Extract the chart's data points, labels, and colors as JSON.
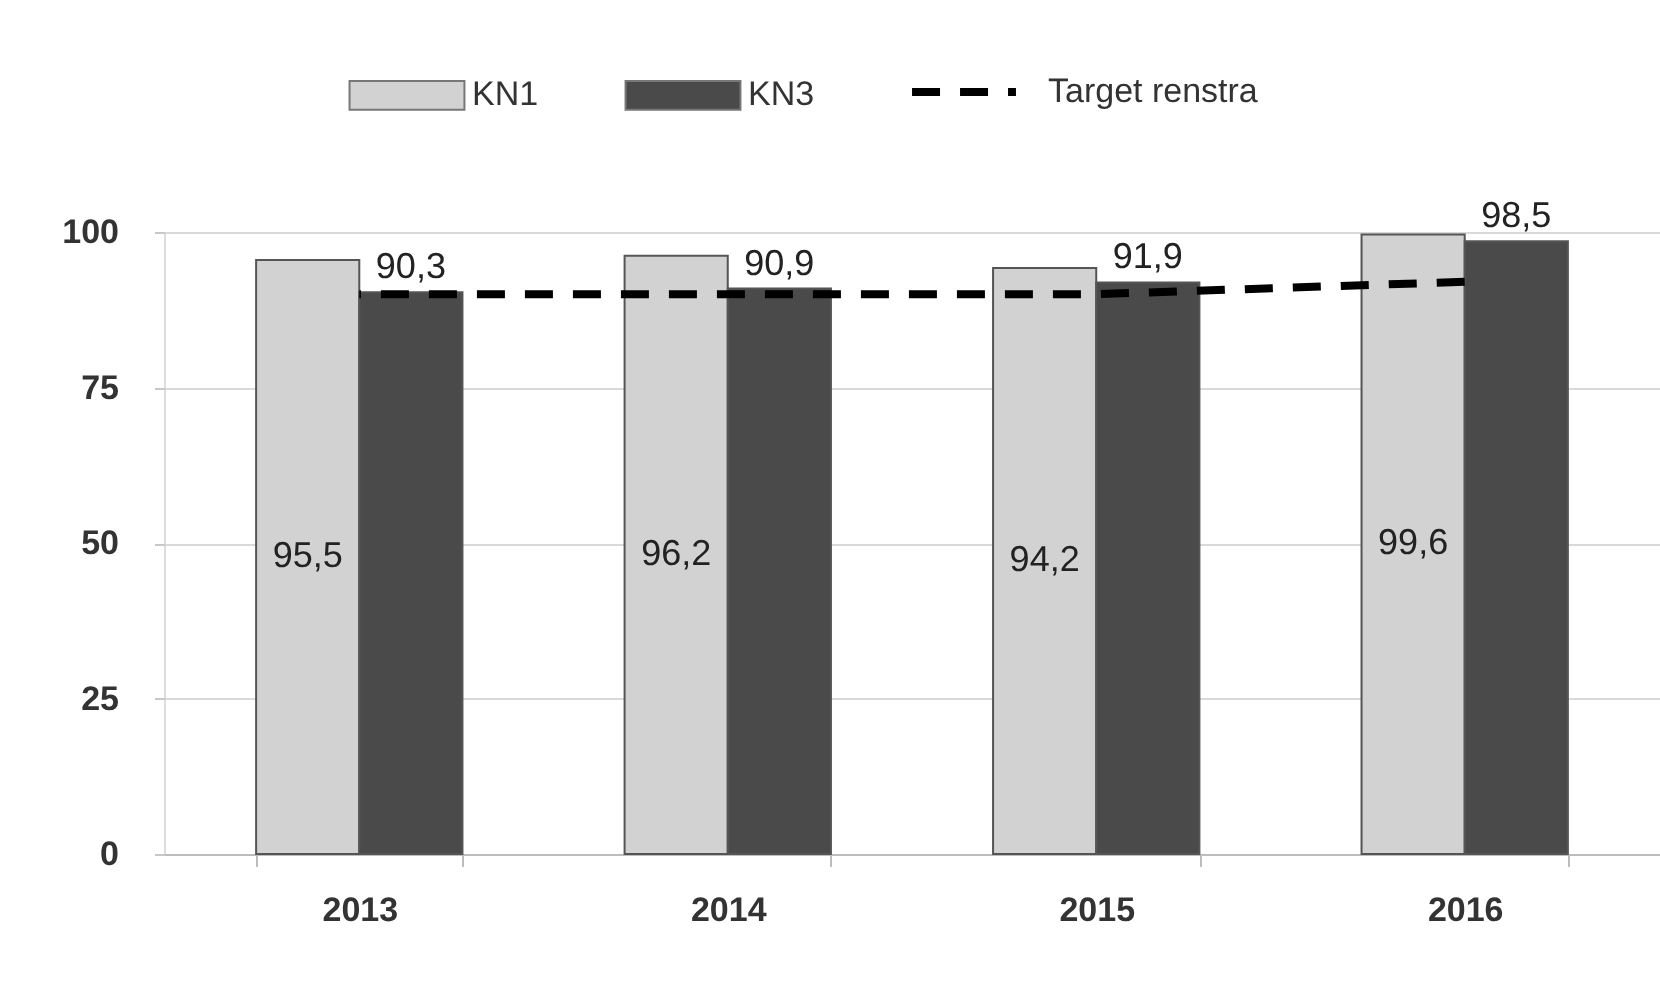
{
  "chart_data": {
    "type": "bar",
    "categories": [
      "2013",
      "2014",
      "2015",
      "2016"
    ],
    "series": [
      {
        "name": "KN1",
        "color": "#d2d2d2",
        "values": [
          95.5,
          96.2,
          94.2,
          99.6
        ],
        "value_labels": [
          "95,5",
          "96,2",
          "94,2",
          "99,6"
        ]
      },
      {
        "name": "KN3",
        "color": "#4a4a4a",
        "values": [
          90.3,
          90.9,
          91.9,
          98.5
        ],
        "value_labels": [
          "90,3",
          "90,9",
          "91,9",
          "98,5"
        ]
      },
      {
        "name": "Target renstra",
        "type": "line",
        "color": "#000000",
        "line_style": "dashed",
        "values": [
          90,
          90,
          90,
          92
        ]
      }
    ],
    "ylim": [
      0,
      100
    ],
    "yticks": [
      0,
      25,
      50,
      75,
      100
    ],
    "grid": "y",
    "legend": "top"
  }
}
